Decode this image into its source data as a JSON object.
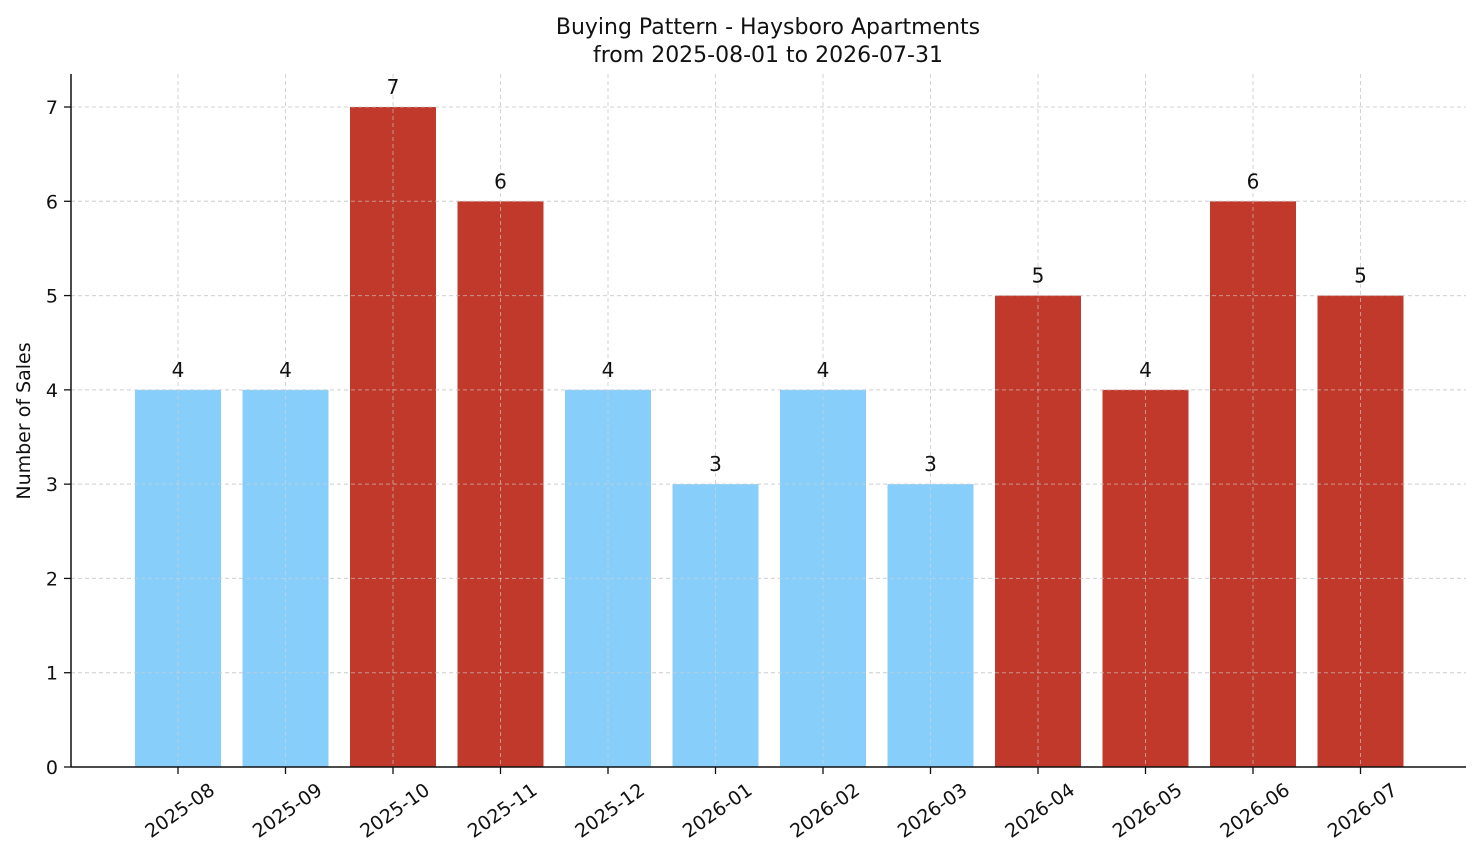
{
  "chart_data": {
    "type": "bar",
    "title": "Buying Pattern - Haysboro Apartments",
    "subtitle": "from 2025-08-01 to 2026-07-31",
    "xlabel": "",
    "ylabel": "Number of Sales",
    "categories": [
      "2025-08",
      "2025-09",
      "2025-10",
      "2025-11",
      "2025-12",
      "2026-01",
      "2026-02",
      "2026-03",
      "2026-04",
      "2026-05",
      "2026-06",
      "2026-07"
    ],
    "values": [
      4,
      4,
      7,
      6,
      4,
      3,
      4,
      3,
      5,
      4,
      6,
      5
    ],
    "bar_colors": [
      "#87CEFA",
      "#87CEFA",
      "#C0392B",
      "#C0392B",
      "#87CEFA",
      "#87CEFA",
      "#87CEFA",
      "#87CEFA",
      "#C0392B",
      "#C0392B",
      "#C0392B",
      "#C0392B"
    ],
    "data_labels": [
      "4",
      "4",
      "7",
      "6",
      "4",
      "3",
      "4",
      "3",
      "5",
      "4",
      "6",
      "5"
    ],
    "yticks": [
      "0",
      "1",
      "2",
      "3",
      "4",
      "5",
      "6",
      "7"
    ],
    "ylim": [
      0,
      7.35
    ],
    "grid": true,
    "legend": "none"
  }
}
